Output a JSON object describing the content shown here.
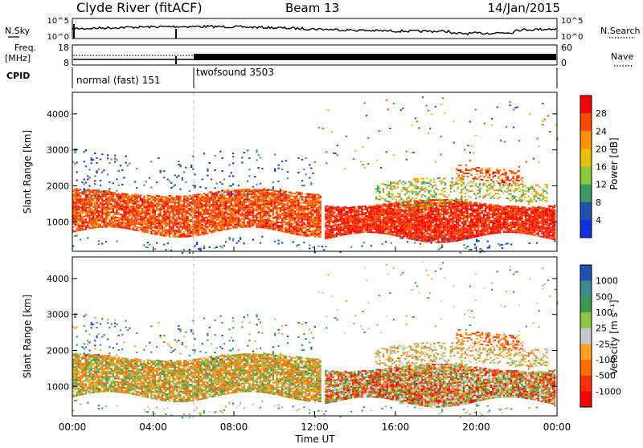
{
  "header": {
    "station": "Clyde River (fitACF)",
    "beam": "Beam 13",
    "date": "14/Jan/2015"
  },
  "noise_panel": {
    "left_label": "N.Sky",
    "right_label": "N.Search",
    "left_ticks": [
      "10^5",
      "10^0"
    ],
    "right_ticks": [
      "10^5",
      "10^0"
    ]
  },
  "freq_panel": {
    "left_label_1": "Freq.",
    "left_label_2": "[MHz]",
    "left_ticks": [
      "18",
      "8"
    ],
    "right_label": "Nave",
    "right_ticks": [
      "60",
      "0"
    ]
  },
  "cpid": {
    "label": "CPID",
    "modes": [
      {
        "name": "normal (fast) 151",
        "start_hour": 0,
        "end_hour": 6
      },
      {
        "name": "twofsound 3503",
        "start_hour": 6,
        "end_hour": 24
      }
    ]
  },
  "chart_data": [
    {
      "type": "heatmap",
      "title": "Power",
      "ylabel": "Slant Range [km]",
      "xlabel": "",
      "ylim": [
        180,
        4600
      ],
      "xlim": [
        0,
        24
      ],
      "yticks": [
        "1000",
        "2000",
        "3000",
        "4000"
      ],
      "colorbar": {
        "label": "Power [dB]",
        "ticks": [
          "28",
          "24",
          "20",
          "16",
          "12",
          "8",
          "4"
        ],
        "colors": [
          "#ff0000",
          "#ff4a00",
          "#ff9000",
          "#e8c000",
          "#8ac840",
          "#3a9a60",
          "#2050b0",
          "#1030e0"
        ]
      }
    },
    {
      "type": "heatmap",
      "title": "Velocity",
      "ylabel": "Slant Range [km]",
      "xlabel": "Time UT",
      "ylim": [
        180,
        4600
      ],
      "xlim": [
        0,
        24
      ],
      "yticks": [
        "1000",
        "2000",
        "3000",
        "4000"
      ],
      "xticks": [
        "00:00",
        "04:00",
        "08:00",
        "12:00",
        "16:00",
        "20:00",
        "00:00"
      ],
      "colorbar": {
        "label": "Velocity [m s⁻¹]",
        "ticks": [
          "1000",
          "500",
          "100",
          "25",
          "-25",
          "-100",
          "-500",
          "-1000"
        ],
        "colors": [
          "#2050b0",
          "#3a8a90",
          "#3c9a50",
          "#8ac840",
          "#c8c8c8",
          "#ffa020",
          "#ff7000",
          "#ff3000",
          "#ff0000"
        ]
      }
    }
  ]
}
